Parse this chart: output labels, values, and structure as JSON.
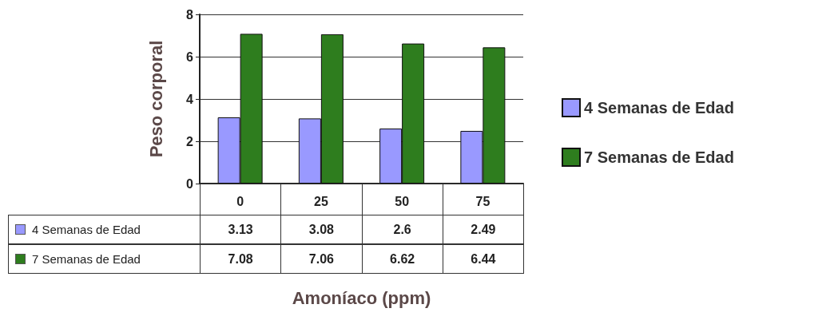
{
  "chart_data": {
    "type": "bar",
    "xlabel": "Amoníaco (ppm)",
    "ylabel": "Peso corporal",
    "categories": [
      "0",
      "25",
      "50",
      "75"
    ],
    "series": [
      {
        "name": "4 Semanas de Edad",
        "color": "#9999ff",
        "values": [
          3.13,
          3.08,
          2.6,
          2.49
        ]
      },
      {
        "name": "7 Semanas de Edad",
        "color": "#2e7d1e",
        "values": [
          7.08,
          7.06,
          6.62,
          6.44
        ]
      }
    ],
    "ylim": [
      0,
      8
    ],
    "yticks": [
      0,
      2,
      4,
      6,
      8
    ],
    "grid": "y",
    "legend": "right",
    "data_labels": true
  }
}
